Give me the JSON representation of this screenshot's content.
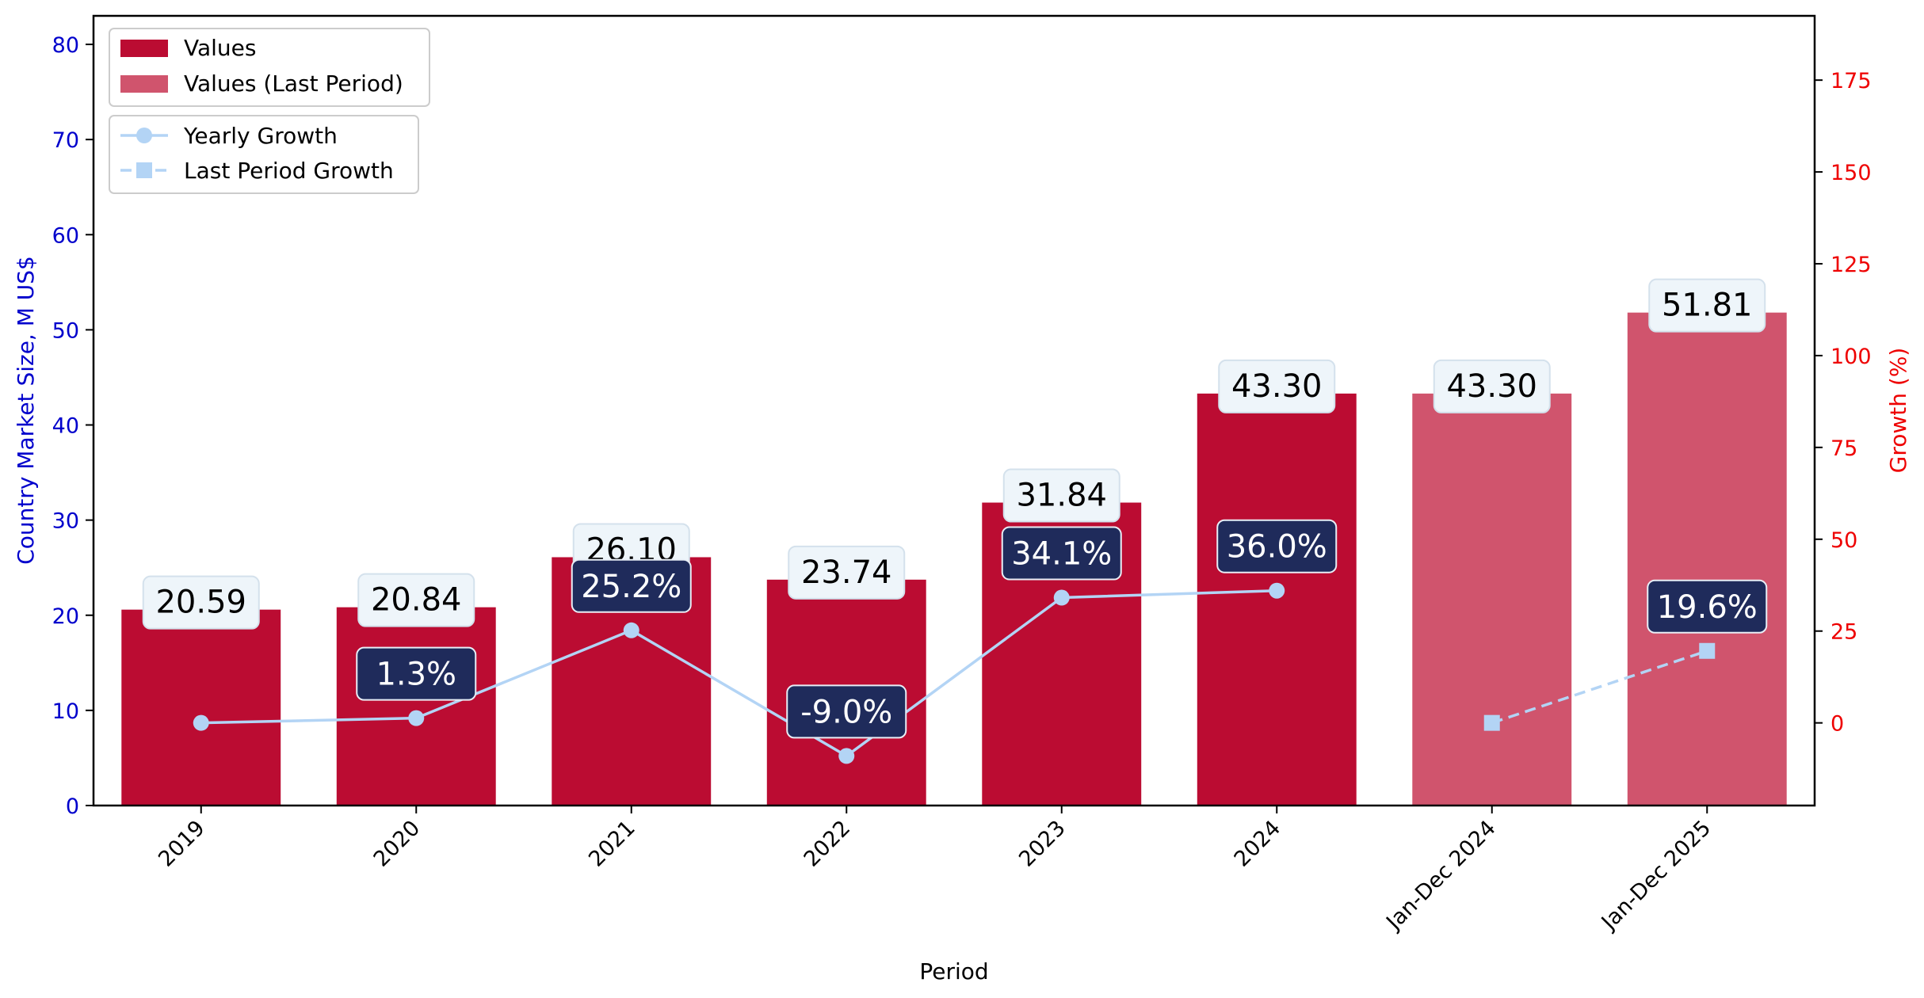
{
  "chart_data": {
    "type": "bar",
    "categories": [
      "2019",
      "2020",
      "2021",
      "2022",
      "2023",
      "2024",
      "Jan-Dec 2024",
      "Jan-Dec 2025"
    ],
    "series": [
      {
        "name": "Values",
        "values": [
          20.59,
          20.84,
          26.1,
          23.74,
          31.84,
          43.3,
          null,
          null
        ],
        "labels": [
          "20.59",
          "20.84",
          "26.10",
          "23.74",
          "31.84",
          "43.30",
          null,
          null
        ],
        "color": "#bb0c32"
      },
      {
        "name": "Values (Last Period)",
        "values": [
          null,
          null,
          null,
          null,
          null,
          null,
          43.3,
          51.81
        ],
        "labels": [
          null,
          null,
          null,
          null,
          null,
          null,
          "43.30",
          "51.81"
        ],
        "color": "#d0546d"
      },
      {
        "name": "Yearly Growth",
        "axis": "right",
        "type": "line",
        "values": [
          0,
          1.3,
          25.2,
          -9.0,
          34.1,
          36.0,
          null,
          null
        ],
        "labels": [
          null,
          "1.3%",
          "25.2%",
          "-9.0%",
          "34.1%",
          "36.0%",
          null,
          null
        ],
        "color": "#b3d4f5"
      },
      {
        "name": "Last Period Growth",
        "axis": "right",
        "type": "line",
        "style": "dashed",
        "values": [
          null,
          null,
          null,
          null,
          null,
          null,
          0,
          19.6
        ],
        "labels": [
          null,
          null,
          null,
          null,
          null,
          null,
          null,
          "19.6%"
        ],
        "color": "#b3d4f5"
      }
    ],
    "xlabel": "Period",
    "ylabel": "Country Market Size, M US$",
    "ylabel_right": "Growth (%)",
    "ylim": [
      0,
      83
    ],
    "ylim_right": [
      -22.5,
      192.5
    ],
    "yticks": [
      "0",
      "10",
      "20",
      "30",
      "40",
      "50",
      "60",
      "70",
      "80"
    ],
    "yticks_right": [
      "0",
      "25",
      "50",
      "75",
      "100",
      "125",
      "150",
      "175"
    ],
    "legend_position": "top-left",
    "grid": false,
    "colors": {
      "left_axis": "#0000cc",
      "right_axis": "#ee0000",
      "growth_label_bg": "#1f2b5b",
      "value_label_bg": "#eef5fa"
    }
  }
}
